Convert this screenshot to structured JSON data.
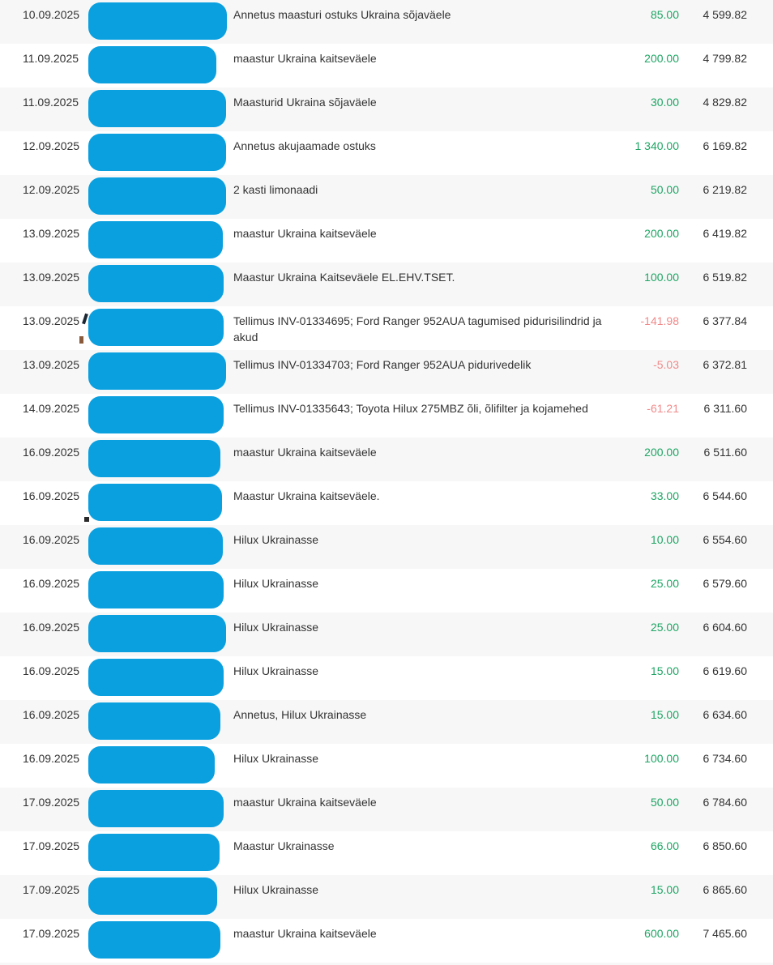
{
  "app": {
    "description": "Bank account statement transaction list (Estonian internet bank), payer names redacted with blue blobs",
    "language": "Estonian"
  },
  "colors": {
    "redaction_blue": "#0aa0e0",
    "positive_green": "#1ea564",
    "negative_red": "#f08a8a",
    "row_stripe": "#f7f7f7",
    "text": "#333333"
  },
  "columns": [
    "date",
    "payer (redacted)",
    "description",
    "amount",
    "balance"
  ],
  "rows": [
    {
      "date": "10.09.2025",
      "description": "Annetus maasturi ostuks Ukraina sõjaväele",
      "amount": "85.00",
      "balance": "4 599.82",
      "redaction_width": 171
    },
    {
      "date": "11.09.2025",
      "description": "maastur Ukraina kaitseväele",
      "amount": "200.00",
      "balance": "4 799.82",
      "redaction_width": 158
    },
    {
      "date": "11.09.2025",
      "description": "Maasturid Ukraina sõjaväele",
      "amount": "30.00",
      "balance": "4 829.82",
      "redaction_width": 170
    },
    {
      "date": "12.09.2025",
      "description": "Annetus akujaamade ostuks",
      "amount": "1 340.00",
      "balance": "6 169.82",
      "redaction_width": 170
    },
    {
      "date": "12.09.2025",
      "description": "2 kasti limonaadi",
      "amount": "50.00",
      "balance": "6 219.82",
      "redaction_width": 170
    },
    {
      "date": "13.09.2025",
      "description": "maastur Ukraina kaitseväele",
      "amount": "200.00",
      "balance": "6 419.82",
      "redaction_width": 166
    },
    {
      "date": "13.09.2025",
      "description": "Maastur Ukraina Kaitseväele EL.EHV.TSET.",
      "amount": "100.00",
      "balance": "6 519.82",
      "redaction_width": 167
    },
    {
      "date": "13.09.2025",
      "description": "Tellimus INV-01334695; Ford Ranger 952AUA tagumised pidurisilindrid ja akud",
      "amount": "-141.98",
      "balance": "6 377.84",
      "redaction_width": 167,
      "uncovered_fragments": [
        "stroke",
        "speck"
      ]
    },
    {
      "date": "13.09.2025",
      "description": "Tellimus INV-01334703; Ford Ranger 952AUA pidurivedelik",
      "amount": "-5.03",
      "balance": "6 372.81",
      "redaction_width": 170
    },
    {
      "date": "14.09.2025",
      "description": "Tellimus INV-01335643; Toyota Hilux 275MBZ õli, õlifilter ja kojamehed",
      "amount": "-61.21",
      "balance": "6 311.60",
      "redaction_width": 167
    },
    {
      "date": "16.09.2025",
      "description": "maastur Ukraina kaitseväele",
      "amount": "200.00",
      "balance": "6 511.60",
      "redaction_width": 163
    },
    {
      "date": "16.09.2025",
      "description": "Maastur Ukraina kaitseväele.",
      "amount": "33.00",
      "balance": "6 544.60",
      "redaction_width": 165,
      "uncovered_fragments": [
        "dot"
      ]
    },
    {
      "date": "16.09.2025",
      "description": "Hilux Ukrainasse",
      "amount": "10.00",
      "balance": "6 554.60",
      "redaction_width": 166
    },
    {
      "date": "16.09.2025",
      "description": "Hilux Ukrainasse",
      "amount": "25.00",
      "balance": "6 579.60",
      "redaction_width": 167
    },
    {
      "date": "16.09.2025",
      "description": "Hilux Ukrainasse",
      "amount": "25.00",
      "balance": "6 604.60",
      "redaction_width": 170
    },
    {
      "date": "16.09.2025",
      "description": "Hilux Ukrainasse",
      "amount": "15.00",
      "balance": "6 619.60",
      "redaction_width": 167
    },
    {
      "date": "16.09.2025",
      "description": "Annetus, Hilux Ukrainasse",
      "amount": "15.00",
      "balance": "6 634.60",
      "redaction_width": 163
    },
    {
      "date": "16.09.2025",
      "description": "Hilux Ukrainasse",
      "amount": "100.00",
      "balance": "6 734.60",
      "redaction_width": 156
    },
    {
      "date": "17.09.2025",
      "description": "maastur Ukraina kaitseväele",
      "amount": "50.00",
      "balance": "6 784.60",
      "redaction_width": 167
    },
    {
      "date": "17.09.2025",
      "description": "Maastur Ukrainasse",
      "amount": "66.00",
      "balance": "6 850.60",
      "redaction_width": 162
    },
    {
      "date": "17.09.2025",
      "description": "Hilux Ukrainasse",
      "amount": "15.00",
      "balance": "6 865.60",
      "redaction_width": 159
    },
    {
      "date": "17.09.2025",
      "description": "maastur Ukraina kaitseväele",
      "amount": "600.00",
      "balance": "7 465.60",
      "redaction_width": 163
    }
  ]
}
